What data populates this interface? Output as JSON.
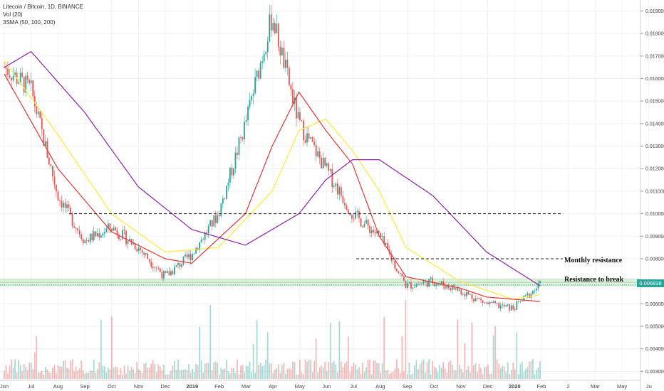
{
  "legend": {
    "symbol": "Litecoin / Bitcoin, 1D, BINANCE",
    "volume": "Vol (20)",
    "sma": "3SMA (50, 100, 200)"
  },
  "annotations": {
    "monthly_resistance": "Monthly resistance",
    "resistance_to_break": "Resistance to break"
  },
  "current_price_label": "0.006838",
  "colors": {
    "up": "#26a69a",
    "down": "#ef5350",
    "sma50": "#e53935",
    "sma100": "#ffeb3b",
    "sma200": "#8e24aa",
    "resistance_zone": "#a5d6a7"
  },
  "chart_data": {
    "type": "candlestick",
    "title": "Litecoin / Bitcoin, 1D, BINANCE",
    "y_ticks": [
      "0.003000",
      "0.004000",
      "0.005000",
      "0.006000",
      "0.007000",
      "0.008000",
      "0.009000",
      "0.010000",
      "0.011000",
      "0.012000",
      "0.013000",
      "0.014000",
      "0.015000",
      "0.016000",
      "0.017000",
      "0.018000",
      "0.019000"
    ],
    "ylim": [
      0.0026,
      0.0193
    ],
    "x_ticks": [
      "Jun",
      "Jul",
      "Aug",
      "Sep",
      "Oct",
      "Nov",
      "Dec",
      "2019",
      "Feb",
      "Mar",
      "Apr",
      "May",
      "Jun",
      "Jul",
      "Aug",
      "Sep",
      "Oct",
      "Nov",
      "Dec",
      "2020",
      "Feb",
      "2",
      "Mar",
      "May",
      "Ju"
    ],
    "price_path": [
      [
        "Jun 2018",
        0.0165
      ],
      [
        "Jul 2018",
        0.0155
      ],
      [
        "Aug 2018",
        0.0108
      ],
      [
        "Sep 2018",
        0.0088
      ],
      [
        "Oct 2018",
        0.0094
      ],
      [
        "Nov 2018",
        0.0085
      ],
      [
        "Dec 2018",
        0.0072
      ],
      [
        "Jan 2019",
        0.0082
      ],
      [
        "Feb 2019",
        0.01
      ],
      [
        "Mar 2019",
        0.014
      ],
      [
        "Apr 2019",
        0.0188
      ],
      [
        "May 2019",
        0.014
      ],
      [
        "Jun 2019",
        0.012
      ],
      [
        "Jul 2019",
        0.01
      ],
      [
        "Aug 2019",
        0.009
      ],
      [
        "Sep 2019",
        0.0068
      ],
      [
        "Oct 2019",
        0.007
      ],
      [
        "Nov 2019",
        0.0066
      ],
      [
        "Dec 2019",
        0.006
      ],
      [
        "Jan 2020",
        0.0058
      ],
      [
        "Feb 2020",
        0.00684
      ]
    ],
    "sma50_path": [
      [
        "Jun 2018",
        0.0162
      ],
      [
        "Aug 2018",
        0.012
      ],
      [
        "Oct 2018",
        0.0092
      ],
      [
        "Dec 2018",
        0.008
      ],
      [
        "Jan 2019",
        0.0078
      ],
      [
        "Mar 2019",
        0.01
      ],
      [
        "Apr 2019",
        0.013
      ],
      [
        "May 2019",
        0.0154
      ],
      [
        "Jun 2019",
        0.0137
      ],
      [
        "Jul 2019",
        0.0122
      ],
      [
        "Aug 2019",
        0.009
      ],
      [
        "Sep 2019",
        0.0072
      ],
      [
        "Nov 2019",
        0.0067
      ],
      [
        "Dec 2019",
        0.0063
      ],
      [
        "Feb 2020",
        0.0061
      ]
    ],
    "sma100_path": [
      [
        "Jun 2018",
        0.0168
      ],
      [
        "Aug 2018",
        0.0135
      ],
      [
        "Oct 2018",
        0.01
      ],
      [
        "Dec 2018",
        0.0083
      ],
      [
        "Feb 2019",
        0.0085
      ],
      [
        "Apr 2019",
        0.011
      ],
      [
        "May 2019",
        0.0137
      ],
      [
        "Jun 2019",
        0.0142
      ],
      [
        "Jul 2019",
        0.0128
      ],
      [
        "Aug 2019",
        0.011
      ],
      [
        "Sep 2019",
        0.0085
      ],
      [
        "Nov 2019",
        0.007
      ],
      [
        "Jan 2020",
        0.0062
      ],
      [
        "Feb 2020",
        0.0064
      ]
    ],
    "sma200_path": [
      [
        "Jun 2018",
        0.0165
      ],
      [
        "Jul 2018",
        0.0172
      ],
      [
        "Sep 2018",
        0.0145
      ],
      [
        "Nov 2018",
        0.0112
      ],
      [
        "Jan 2019",
        0.0093
      ],
      [
        "Mar 2019",
        0.0086
      ],
      [
        "May 2019",
        0.01
      ],
      [
        "Jun 2019",
        0.0115
      ],
      [
        "Jul 2019",
        0.0124
      ],
      [
        "Aug 2019",
        0.0124
      ],
      [
        "Oct 2019",
        0.0108
      ],
      [
        "Dec 2019",
        0.0083
      ],
      [
        "Feb 2020",
        0.0068
      ]
    ],
    "levels": [
      {
        "value": 0.01,
        "style": "dashed"
      },
      {
        "value": 0.008,
        "style": "dashed",
        "label": "Monthly resistance"
      },
      {
        "value": 0.007,
        "style": "zone",
        "label": "Resistance to break"
      }
    ]
  }
}
